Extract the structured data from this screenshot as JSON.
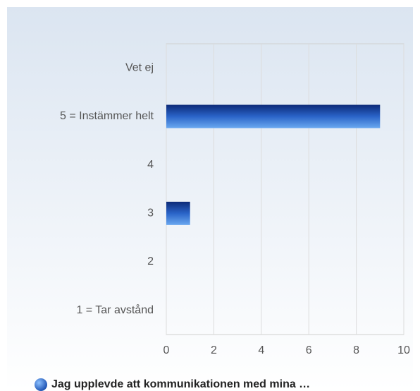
{
  "chart_data": {
    "type": "hbar",
    "categories": [
      "Vet ej",
      "5 = Instämmer helt",
      "4",
      "3",
      "2",
      "1 = Tar avstånd"
    ],
    "series": [
      {
        "name": "Jag upplevde att kommunikationen med mina …",
        "color": "#2a64c8",
        "values": [
          0,
          9,
          0,
          1,
          0,
          0
        ]
      }
    ],
    "xlim": [
      0,
      10
    ],
    "xticks": [
      0,
      2,
      4,
      6,
      8,
      10
    ],
    "grid": true,
    "legend": "bottom"
  }
}
